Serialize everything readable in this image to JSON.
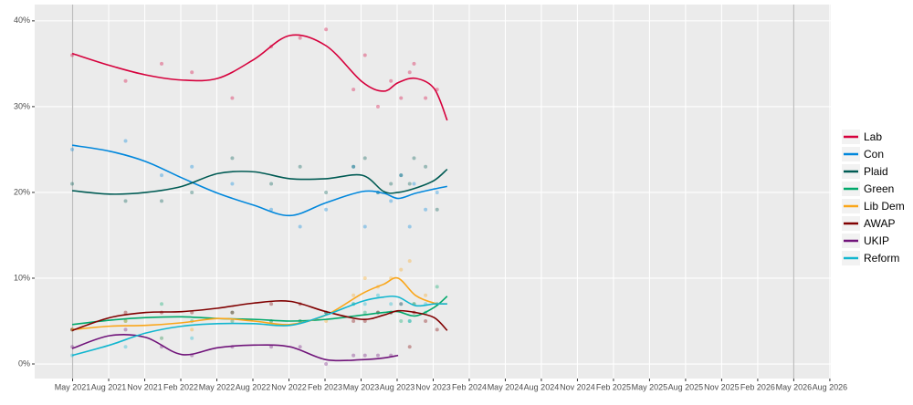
{
  "chart_data": {
    "type": "line",
    "x": [
      2021.33,
      2021.59,
      2021.84,
      2022.09,
      2022.34,
      2022.59,
      2022.84,
      2023.09,
      2023.34,
      2023.49,
      2023.59,
      2023.71,
      2023.84,
      2023.93
    ],
    "points_x": [
      2021.33,
      2021.7,
      2021.95,
      2022.16,
      2022.44,
      2022.71,
      2022.91,
      2023.09,
      2023.28,
      2023.36,
      2023.45,
      2023.54,
      2023.61,
      2023.67,
      2023.7,
      2023.78,
      2023.86
    ],
    "series": [
      {
        "name": "Lab",
        "color": "#d6003c",
        "values": [
          36.2,
          34.8,
          33.7,
          33.1,
          33.3,
          35.5,
          38.3,
          37.1,
          32.9,
          31.8,
          32.8,
          33.3,
          32.1,
          28.4
        ],
        "points": [
          36,
          33,
          35,
          34,
          31,
          37,
          38,
          39,
          32,
          36,
          30,
          33,
          31,
          34,
          35,
          31,
          32
        ]
      },
      {
        "name": "Con",
        "color": "#0087dc",
        "values": [
          25.5,
          24.8,
          23.6,
          21.7,
          19.9,
          18.5,
          17.3,
          18.8,
          20.1,
          19.9,
          19.3,
          19.9,
          20.4,
          20.7
        ],
        "points": [
          25,
          26,
          22,
          23,
          21,
          18,
          16,
          18,
          23,
          16,
          20,
          19,
          22,
          16,
          21,
          18,
          20
        ]
      },
      {
        "name": "Plaid",
        "color": "#005b54",
        "values": [
          20.2,
          19.8,
          20.0,
          20.7,
          22.2,
          22.4,
          21.6,
          21.6,
          22.0,
          20.1,
          20.0,
          20.5,
          21.4,
          22.7
        ],
        "points": [
          21,
          19,
          19,
          20,
          24,
          21,
          23,
          20,
          23,
          24,
          20,
          21,
          22,
          21,
          24,
          23,
          18
        ]
      },
      {
        "name": "Green",
        "color": "#00a86b",
        "values": [
          4.6,
          5.1,
          5.4,
          5.5,
          5.3,
          5.2,
          5.0,
          5.2,
          5.7,
          6.0,
          6.1,
          5.6,
          6.6,
          7.9
        ],
        "points": [
          4,
          5,
          7,
          5,
          6,
          5,
          5,
          6,
          7,
          6,
          6,
          6,
          5,
          5,
          7,
          6,
          9
        ]
      },
      {
        "name": "Lib Dem",
        "color": "#faa61a",
        "values": [
          4.0,
          4.4,
          4.5,
          4.8,
          5.3,
          5.0,
          4.6,
          5.7,
          8.2,
          9.3,
          10.0,
          8.0,
          7.1,
          7.0
        ],
        "points": [
          4,
          5,
          3,
          4,
          5,
          5,
          5,
          5,
          8,
          10,
          9,
          10,
          11,
          12,
          7,
          8,
          7
        ]
      },
      {
        "name": "AWAP",
        "color": "#800000",
        "values": [
          3.9,
          5.4,
          6.0,
          6.1,
          6.5,
          7.1,
          7.3,
          6.1,
          5.2,
          5.7,
          6.2,
          6.0,
          5.4,
          3.9
        ],
        "points": [
          4,
          6,
          6,
          6,
          6,
          7,
          7,
          6,
          5,
          5,
          6,
          6,
          7,
          2,
          6,
          5,
          4
        ]
      },
      {
        "name": "UKIP",
        "color": "#70147a",
        "values": [
          1.8,
          3.3,
          3.1,
          1.1,
          1.9,
          2.2,
          2.0,
          0.5,
          0.5,
          0.7,
          1.0,
          null,
          null,
          null
        ],
        "points": [
          2,
          4,
          2,
          1,
          2,
          2,
          2,
          0,
          1,
          1,
          1,
          1,
          null,
          null,
          null,
          null,
          null
        ]
      },
      {
        "name": "Reform",
        "color": "#12b6cf",
        "values": [
          1.0,
          2.2,
          3.6,
          4.4,
          4.7,
          4.7,
          4.5,
          5.7,
          7.3,
          7.8,
          7.8,
          6.8,
          7.0,
          7.0
        ],
        "points": [
          1,
          2,
          3,
          3,
          5,
          5,
          5,
          6,
          7,
          7,
          8,
          7,
          7,
          5,
          7,
          7,
          7
        ]
      }
    ],
    "xlim": [
      2021.07,
      2026.59
    ],
    "ylim": [
      -1.7,
      41.9
    ],
    "yticks": [
      {
        "value": 0,
        "label": "0%"
      },
      {
        "value": 10,
        "label": "10%"
      },
      {
        "value": 20,
        "label": "20%"
      },
      {
        "value": 30,
        "label": "30%"
      },
      {
        "value": 40,
        "label": "40%"
      }
    ],
    "xticks": [
      {
        "value": 2021.333,
        "label": "May 2021"
      },
      {
        "value": 2021.583,
        "label": "Aug 2021"
      },
      {
        "value": 2021.833,
        "label": "Nov 2021"
      },
      {
        "value": 2022.083,
        "label": "Feb 2022"
      },
      {
        "value": 2022.333,
        "label": "May 2022"
      },
      {
        "value": 2022.583,
        "label": "Aug 2022"
      },
      {
        "value": 2022.833,
        "label": "Nov 2022"
      },
      {
        "value": 2023.083,
        "label": "Feb 2023"
      },
      {
        "value": 2023.333,
        "label": "May 2023"
      },
      {
        "value": 2023.583,
        "label": "Aug 2023"
      },
      {
        "value": 2023.833,
        "label": "Nov 2023"
      },
      {
        "value": 2024.083,
        "label": "Feb 2024"
      },
      {
        "value": 2024.333,
        "label": "May 2024"
      },
      {
        "value": 2024.583,
        "label": "Aug 2024"
      },
      {
        "value": 2024.833,
        "label": "Nov 2024"
      },
      {
        "value": 2025.083,
        "label": "Feb 2025"
      },
      {
        "value": 2025.333,
        "label": "May 2025"
      },
      {
        "value": 2025.583,
        "label": "Aug 2025"
      },
      {
        "value": 2025.833,
        "label": "Nov 2025"
      },
      {
        "value": 2026.083,
        "label": "Feb 2026"
      },
      {
        "value": 2026.333,
        "label": "May 2026"
      },
      {
        "value": 2026.583,
        "label": "Aug 2026"
      }
    ],
    "reference_lines": [
      2021.333,
      2026.333
    ],
    "grid": true,
    "legend": "right"
  }
}
